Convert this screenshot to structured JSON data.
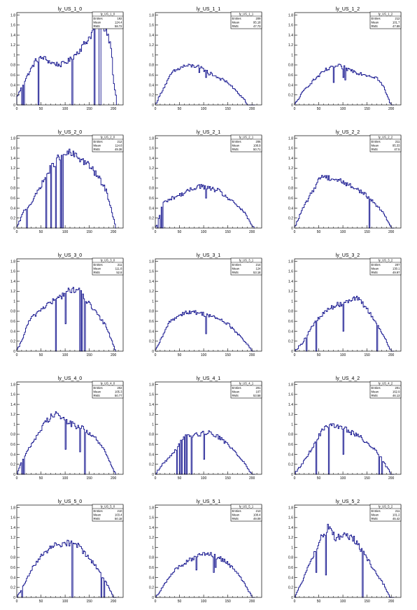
{
  "colors": {
    "histogram": "#0b0b8a",
    "frame": "#000000",
    "background": "#ffffff"
  },
  "axis": {
    "x_ticks": [
      "0",
      "50",
      "100",
      "150",
      "200"
    ],
    "x_tick_values": [
      0,
      50,
      100,
      150,
      200
    ],
    "y_ticks": [
      "0",
      "0.2",
      "0.4",
      "0.6",
      "0.8",
      "1",
      "1.2",
      "1.4",
      "1.6",
      "1.8"
    ],
    "y_tick_values": [
      0,
      0.2,
      0.4,
      0.6,
      0.8,
      1.0,
      1.2,
      1.4,
      1.6,
      1.8
    ],
    "xlim": [
      0,
      220
    ],
    "ylim": [
      0,
      1.85
    ]
  },
  "stats_labels": {
    "entries": "Entries",
    "mean": "Mean",
    "rms": "RMS"
  },
  "chart_data": [
    {
      "type": "bar",
      "title": "ly_US_1_0",
      "stats": {
        "name": "ly_US_1_0",
        "entries": "192",
        "mean": "124.4",
        "rms": "58.72"
      },
      "profile": [
        [
          0,
          0.15
        ],
        [
          20,
          0.55
        ],
        [
          40,
          0.9
        ],
        [
          55,
          0.95
        ],
        [
          70,
          0.85
        ],
        [
          90,
          0.8
        ],
        [
          110,
          0.9
        ],
        [
          130,
          1.1
        ],
        [
          150,
          1.35
        ],
        [
          165,
          1.6
        ],
        [
          175,
          1.65
        ],
        [
          185,
          1.5
        ],
        [
          195,
          1.2
        ],
        [
          200,
          0.5
        ],
        [
          205,
          0.2
        ]
      ],
      "dips": [
        [
          10,
          0.0
        ],
        [
          15,
          0.0
        ],
        [
          45,
          0.0
        ],
        [
          115,
          0.0
        ],
        [
          160,
          0.0
        ],
        [
          170,
          0.0
        ],
        [
          172,
          0.0
        ]
      ]
    },
    {
      "type": "bar",
      "title": "ly_US_1_1",
      "stats": {
        "name": "ly_US_1_1",
        "entries": "209",
        "mean": "95.18",
        "rms": "47.73"
      },
      "profile": [
        [
          0,
          0.0
        ],
        [
          15,
          0.3
        ],
        [
          35,
          0.65
        ],
        [
          60,
          0.78
        ],
        [
          85,
          0.78
        ],
        [
          105,
          0.68
        ],
        [
          130,
          0.55
        ],
        [
          150,
          0.45
        ],
        [
          170,
          0.25
        ],
        [
          185,
          0.1
        ],
        [
          190,
          0.0
        ]
      ],
      "dips": [
        [
          105,
          0.55
        ],
        [
          110,
          0.6
        ],
        [
          90,
          0.65
        ]
      ]
    },
    {
      "type": "bar",
      "title": "ly_US_1_2",
      "stats": {
        "name": "ly_US_1_2",
        "entries": "212",
        "mean": "101.7",
        "rms": "47.89"
      },
      "profile": [
        [
          0,
          0.0
        ],
        [
          20,
          0.3
        ],
        [
          40,
          0.5
        ],
        [
          65,
          0.7
        ],
        [
          90,
          0.78
        ],
        [
          110,
          0.72
        ],
        [
          130,
          0.65
        ],
        [
          150,
          0.6
        ],
        [
          170,
          0.55
        ],
        [
          185,
          0.35
        ],
        [
          195,
          0.1
        ],
        [
          200,
          0.0
        ]
      ],
      "dips": [
        [
          80,
          0.45
        ],
        [
          100,
          0.55
        ],
        [
          105,
          0.5
        ]
      ]
    },
    {
      "type": "bar",
      "title": "ly_US_2_0",
      "stats": {
        "name": "ly_US_2_0",
        "entries": "212",
        "mean": "114.8",
        "rms": "49.38"
      },
      "profile": [
        [
          0,
          0.0
        ],
        [
          15,
          0.35
        ],
        [
          30,
          0.5
        ],
        [
          50,
          0.85
        ],
        [
          70,
          1.2
        ],
        [
          90,
          1.45
        ],
        [
          110,
          1.5
        ],
        [
          130,
          1.4
        ],
        [
          150,
          1.25
        ],
        [
          170,
          1.0
        ],
        [
          185,
          0.75
        ],
        [
          195,
          0.4
        ],
        [
          205,
          0.0
        ]
      ],
      "dips": [
        [
          20,
          0.0
        ],
        [
          60,
          0.0
        ],
        [
          70,
          0.0
        ],
        [
          90,
          0.0
        ],
        [
          80,
          0.0
        ],
        [
          95,
          0.0
        ]
      ]
    },
    {
      "type": "bar",
      "title": "ly_US_2_1",
      "stats": {
        "name": "ly_US_2_1",
        "entries": "206",
        "mean": "108.9",
        "rms": "50.71"
      },
      "profile": [
        [
          0,
          0.0
        ],
        [
          5,
          0.1
        ],
        [
          15,
          0.5
        ],
        [
          35,
          0.6
        ],
        [
          60,
          0.7
        ],
        [
          90,
          0.85
        ],
        [
          110,
          0.8
        ],
        [
          130,
          0.75
        ],
        [
          150,
          0.6
        ],
        [
          170,
          0.45
        ],
        [
          185,
          0.3
        ],
        [
          200,
          0.05
        ],
        [
          205,
          0.0
        ]
      ],
      "dips": [
        [
          5,
          0.0
        ],
        [
          10,
          0.0
        ],
        [
          15,
          0.0
        ],
        [
          105,
          0.6
        ]
      ]
    },
    {
      "type": "bar",
      "title": "ly_US_2_2",
      "stats": {
        "name": "ly_US_2_2",
        "entries": "211",
        "mean": "95.33",
        "rms": "47.5"
      },
      "profile": [
        [
          0,
          0.0
        ],
        [
          15,
          0.35
        ],
        [
          35,
          0.7
        ],
        [
          55,
          1.05
        ],
        [
          75,
          1.0
        ],
        [
          95,
          0.95
        ],
        [
          115,
          0.85
        ],
        [
          135,
          0.75
        ],
        [
          155,
          0.6
        ],
        [
          170,
          0.45
        ],
        [
          185,
          0.3
        ],
        [
          195,
          0.1
        ],
        [
          200,
          0.0
        ]
      ],
      "dips": [
        [
          155,
          0.0
        ]
      ]
    },
    {
      "type": "bar",
      "title": "ly_US_3_0",
      "stats": {
        "name": "ly_US_3_0",
        "entries": "211",
        "mean": "111.8",
        "rms": "52.8"
      },
      "profile": [
        [
          0,
          0.0
        ],
        [
          10,
          0.2
        ],
        [
          25,
          0.6
        ],
        [
          45,
          0.8
        ],
        [
          65,
          0.95
        ],
        [
          85,
          1.05
        ],
        [
          105,
          1.2
        ],
        [
          125,
          1.25
        ],
        [
          145,
          1.0
        ],
        [
          165,
          0.75
        ],
        [
          185,
          0.5
        ],
        [
          205,
          0.0
        ]
      ],
      "dips": [
        [
          80,
          0.0
        ],
        [
          100,
          0.55
        ],
        [
          130,
          0.0
        ],
        [
          140,
          0.0
        ],
        [
          135,
          0.0
        ]
      ]
    },
    {
      "type": "bar",
      "title": "ly_US_3_1",
      "stats": {
        "name": "ly_US_3_1",
        "entries": "214",
        "mean": "124",
        "rms": "53.18"
      },
      "profile": [
        [
          0,
          0.0
        ],
        [
          10,
          0.2
        ],
        [
          30,
          0.6
        ],
        [
          60,
          0.78
        ],
        [
          90,
          0.77
        ],
        [
          110,
          0.72
        ],
        [
          130,
          0.65
        ],
        [
          150,
          0.55
        ],
        [
          170,
          0.35
        ],
        [
          190,
          0.15
        ],
        [
          200,
          0.0
        ]
      ],
      "dips": [
        [
          105,
          0.35
        ]
      ]
    },
    {
      "type": "bar",
      "title": "ly_US_3_2",
      "stats": {
        "name": "ly_US_3_2",
        "entries": "207",
        "mean": "130.1",
        "rms": "49.97"
      },
      "profile": [
        [
          0,
          0.0
        ],
        [
          15,
          0.15
        ],
        [
          40,
          0.55
        ],
        [
          70,
          0.85
        ],
        [
          95,
          0.95
        ],
        [
          115,
          1.05
        ],
        [
          130,
          1.05
        ],
        [
          150,
          0.85
        ],
        [
          170,
          0.55
        ],
        [
          185,
          0.3
        ],
        [
          200,
          0.0
        ]
      ],
      "dips": [
        [
          25,
          0.0
        ],
        [
          45,
          0.0
        ],
        [
          100,
          0.4
        ],
        [
          170,
          0.0
        ]
      ]
    },
    {
      "type": "bar",
      "title": "ly_US_4_0",
      "stats": {
        "name": "ly_US_4_0",
        "entries": "202",
        "mean": "105.3",
        "rms": "50.77"
      },
      "profile": [
        [
          0,
          0.0
        ],
        [
          10,
          0.25
        ],
        [
          30,
          0.6
        ],
        [
          60,
          1.05
        ],
        [
          80,
          1.25
        ],
        [
          95,
          1.1
        ],
        [
          115,
          1.0
        ],
        [
          140,
          0.9
        ],
        [
          160,
          0.75
        ],
        [
          180,
          0.5
        ],
        [
          200,
          0.1
        ],
        [
          205,
          0.0
        ]
      ],
      "dips": [
        [
          10,
          0.0
        ],
        [
          15,
          0.0
        ],
        [
          100,
          0.5
        ],
        [
          140,
          0.0
        ],
        [
          130,
          0.45
        ]
      ]
    },
    {
      "type": "bar",
      "title": "ly_US_4_1",
      "stats": {
        "name": "ly_US_4_1",
        "entries": "201",
        "mean": "107",
        "rms": "53.58"
      },
      "profile": [
        [
          0,
          0.0
        ],
        [
          15,
          0.2
        ],
        [
          35,
          0.4
        ],
        [
          60,
          0.75
        ],
        [
          90,
          0.8
        ],
        [
          110,
          0.85
        ],
        [
          130,
          0.75
        ],
        [
          150,
          0.6
        ],
        [
          170,
          0.4
        ],
        [
          190,
          0.15
        ],
        [
          200,
          0.0
        ]
      ],
      "dips": [
        [
          45,
          0.0
        ],
        [
          50,
          0.0
        ],
        [
          55,
          0.0
        ],
        [
          60,
          0.0
        ],
        [
          65,
          0.0
        ],
        [
          75,
          0.0
        ],
        [
          100,
          0.3
        ]
      ]
    },
    {
      "type": "bar",
      "title": "ly_US_4_2",
      "stats": {
        "name": "ly_US_4_2",
        "entries": "201",
        "mean": "162.9",
        "rms": "46.13"
      },
      "profile": [
        [
          0,
          0.0
        ],
        [
          15,
          0.2
        ],
        [
          35,
          0.5
        ],
        [
          55,
          0.85
        ],
        [
          75,
          1.0
        ],
        [
          95,
          0.95
        ],
        [
          115,
          0.85
        ],
        [
          135,
          0.75
        ],
        [
          155,
          0.6
        ],
        [
          175,
          0.4
        ],
        [
          190,
          0.15
        ],
        [
          200,
          0.0
        ]
      ],
      "dips": [
        [
          45,
          0.0
        ],
        [
          70,
          0.0
        ],
        [
          175,
          0.0
        ],
        [
          180,
          0.0
        ],
        [
          100,
          0.4
        ]
      ]
    },
    {
      "type": "bar",
      "title": "ly_US_5_0",
      "stats": {
        "name": "ly_US_5_0",
        "entries": "210",
        "mean": "103.4",
        "rms": "50.18"
      },
      "profile": [
        [
          0,
          0.0
        ],
        [
          10,
          0.15
        ],
        [
          30,
          0.55
        ],
        [
          55,
          0.9
        ],
        [
          80,
          1.05
        ],
        [
          105,
          1.1
        ],
        [
          125,
          1.05
        ],
        [
          145,
          0.85
        ],
        [
          165,
          0.6
        ],
        [
          185,
          0.3
        ],
        [
          200,
          0.0
        ]
      ],
      "dips": [
        [
          10,
          0.0
        ],
        [
          115,
          0.0
        ],
        [
          175,
          0.0
        ],
        [
          180,
          0.0
        ]
      ]
    },
    {
      "type": "bar",
      "title": "ly_US_5_1",
      "stats": {
        "name": "ly_US_5_1",
        "entries": "213",
        "mean": "108.4",
        "rms": "49.09"
      },
      "profile": [
        [
          0,
          0.0
        ],
        [
          15,
          0.2
        ],
        [
          40,
          0.55
        ],
        [
          70,
          0.75
        ],
        [
          95,
          0.85
        ],
        [
          120,
          0.85
        ],
        [
          140,
          0.75
        ],
        [
          160,
          0.6
        ],
        [
          180,
          0.35
        ],
        [
          195,
          0.1
        ],
        [
          200,
          0.0
        ]
      ],
      "dips": [
        [
          85,
          0.55
        ],
        [
          120,
          0.5
        ],
        [
          125,
          0.6
        ]
      ]
    },
    {
      "type": "bar",
      "title": "ly_US_5_2",
      "stats": {
        "name": "ly_US_5_2",
        "entries": "211",
        "mean": "101.2",
        "rms": "45.42"
      },
      "profile": [
        [
          0,
          0.0
        ],
        [
          15,
          0.3
        ],
        [
          35,
          0.75
        ],
        [
          55,
          1.2
        ],
        [
          70,
          1.4
        ],
        [
          85,
          1.2
        ],
        [
          105,
          1.25
        ],
        [
          125,
          1.15
        ],
        [
          145,
          0.85
        ],
        [
          165,
          0.55
        ],
        [
          185,
          0.25
        ],
        [
          195,
          0.05
        ],
        [
          200,
          0.0
        ]
      ],
      "dips": [
        [
          45,
          0.5
        ],
        [
          65,
          0.45
        ],
        [
          140,
          0.0
        ]
      ]
    }
  ]
}
